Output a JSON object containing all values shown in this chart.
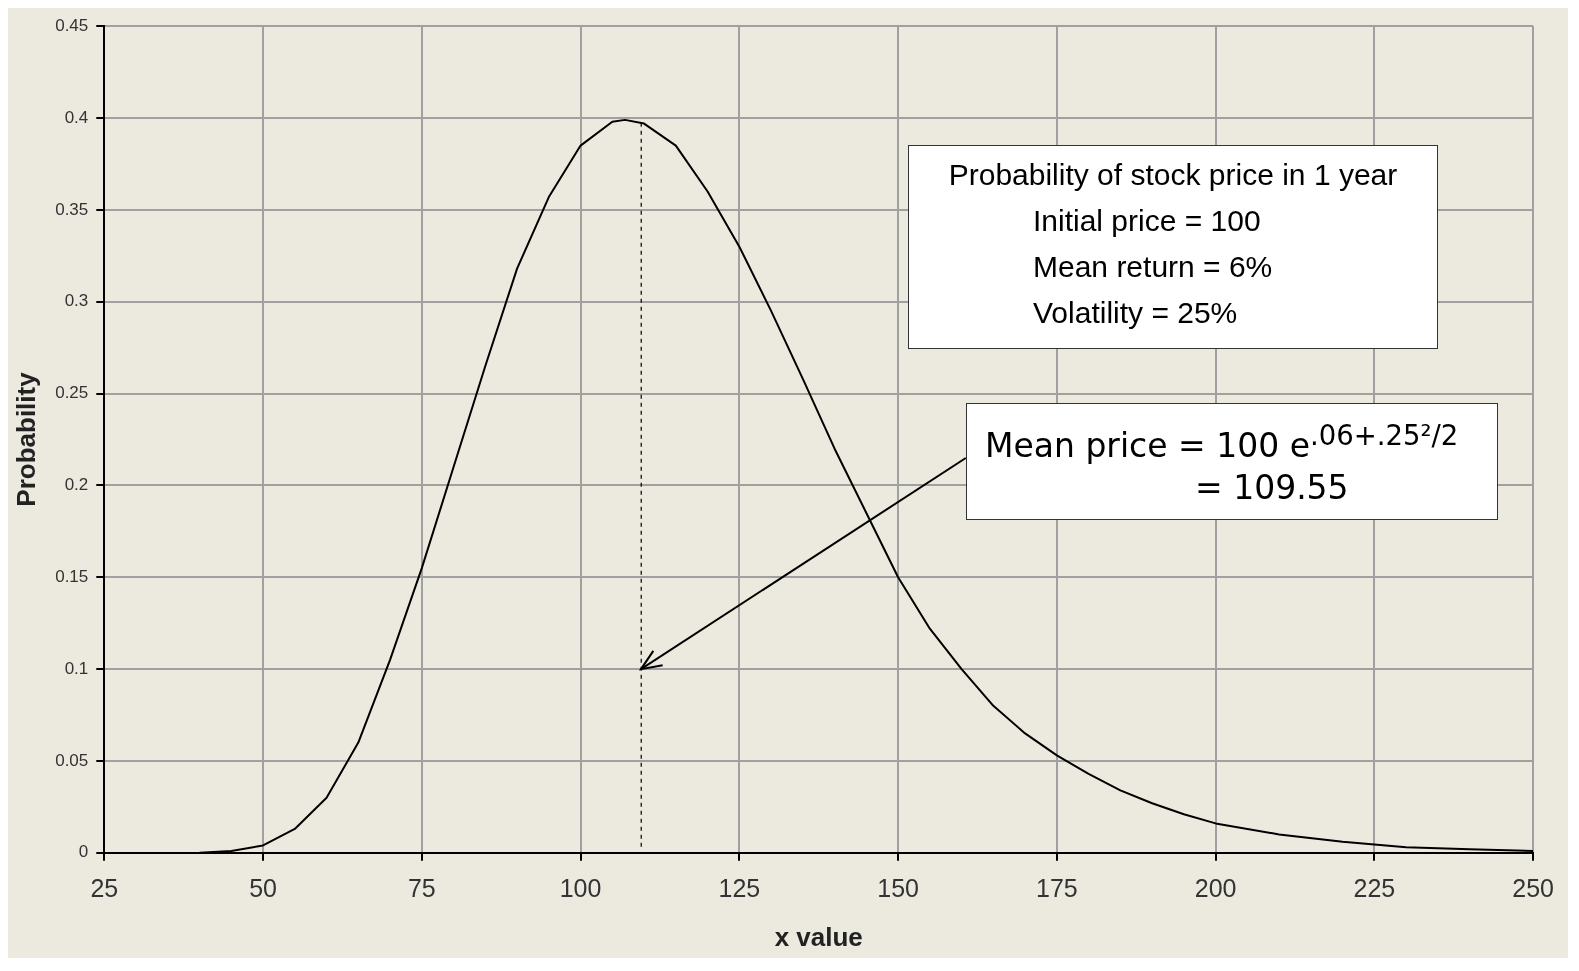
{
  "chart_data": {
    "type": "line",
    "title": "Probability of stock price in 1 year",
    "xlabel": "x value",
    "ylabel": "Probability",
    "x": [
      40,
      45,
      50,
      55,
      60,
      65,
      70,
      75,
      80,
      85,
      90,
      95,
      100,
      105,
      107,
      110,
      115,
      120,
      125,
      130,
      135,
      140,
      145,
      150,
      155,
      160,
      165,
      170,
      175,
      180,
      185,
      190,
      195,
      200,
      210,
      220,
      230,
      240,
      250
    ],
    "series": [
      {
        "color": "#000000",
        "values": [
          0,
          0.001,
          0.004,
          0.013,
          0.03,
          0.06,
          0.105,
          0.155,
          0.21,
          0.265,
          0.318,
          0.357,
          0.385,
          0.398,
          0.399,
          0.397,
          0.385,
          0.36,
          0.33,
          0.295,
          0.258,
          0.22,
          0.185,
          0.15,
          0.122,
          0.1,
          0.08,
          0.065,
          0.053,
          0.043,
          0.034,
          0.027,
          0.021,
          0.016,
          0.01,
          0.006,
          0.003,
          0.002,
          0.001
        ]
      }
    ],
    "xlim": [
      25,
      250
    ],
    "xticks": [
      25,
      50,
      75,
      100,
      125,
      150,
      175,
      200,
      225,
      250
    ],
    "ylim": [
      0,
      0.45
    ],
    "yticks": [
      0,
      0.05,
      0.1,
      0.15,
      0.2,
      0.25,
      0.3,
      0.35,
      0.4,
      0.45
    ],
    "grid": true,
    "legend": false,
    "marker": "none",
    "line_style": "solid",
    "ref_lines": [
      {
        "axis": "x",
        "value": 109.55,
        "line_style": "dashed",
        "color": "#000000"
      }
    ],
    "annotations": [
      "Initial price = 100",
      "Mean return = 6%",
      "Volatility = 25%",
      {
        "text": "Mean price = 100 e$^{.06+.25²/2}$\n= 109.55",
        "x": 109.55,
        "y": 0.1
      }
    ]
  }
}
